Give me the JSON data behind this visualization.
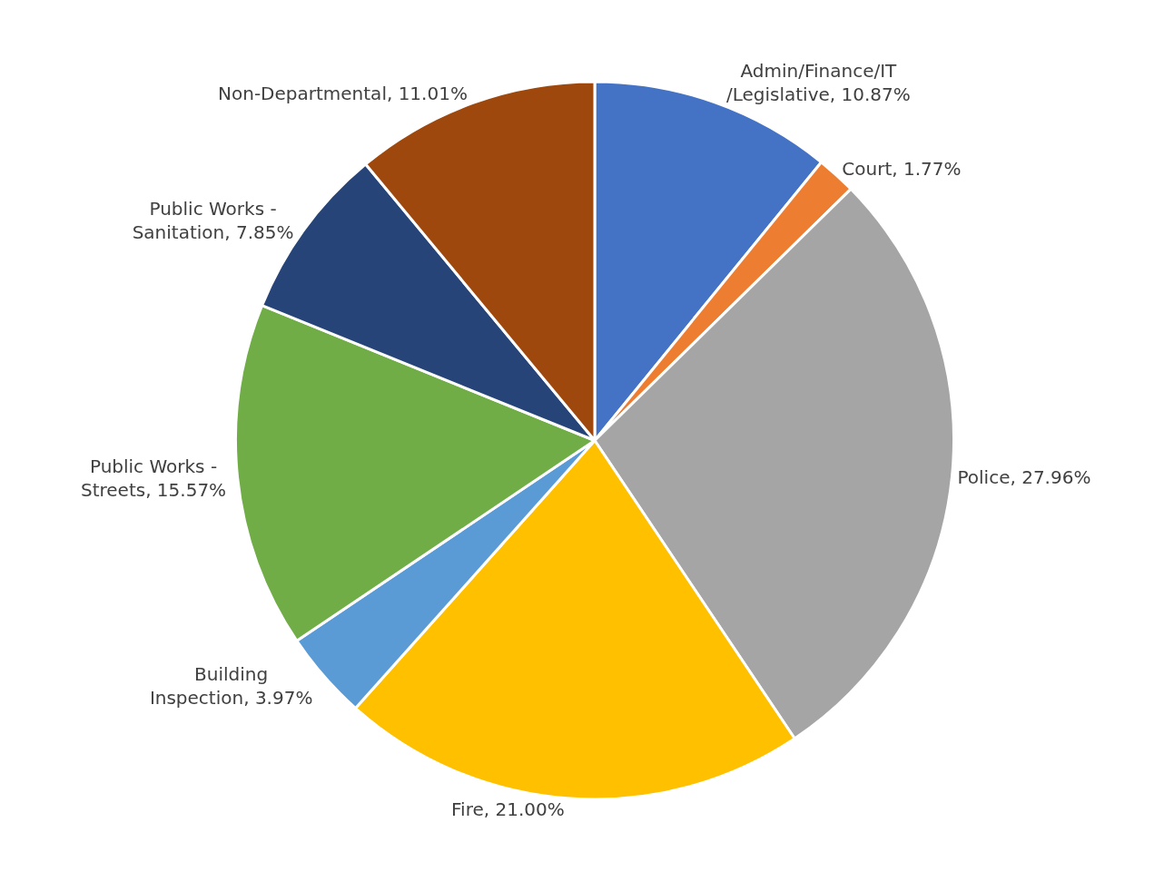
{
  "chart_data": {
    "type": "pie",
    "categories": [
      "Admin/Finance/IT/Legislative",
      "Court",
      "Police",
      "Fire",
      "Building Inspection",
      "Public Works - Streets",
      "Public Works - Sanitation",
      "Non-Departmental"
    ],
    "values": [
      10.87,
      1.77,
      27.96,
      21.0,
      3.97,
      15.57,
      7.85,
      11.01
    ],
    "value_labels": [
      "10.87%",
      "1.77%",
      "27.96%",
      "21.00%",
      "3.97%",
      "15.57%",
      "7.85%",
      "11.01%"
    ],
    "colors": [
      "#4472c4",
      "#ed7d31",
      "#a5a5a5",
      "#ffc000",
      "#5b9bd5",
      "#70ad47",
      "#264478",
      "#9e480e"
    ],
    "legend": false
  }
}
